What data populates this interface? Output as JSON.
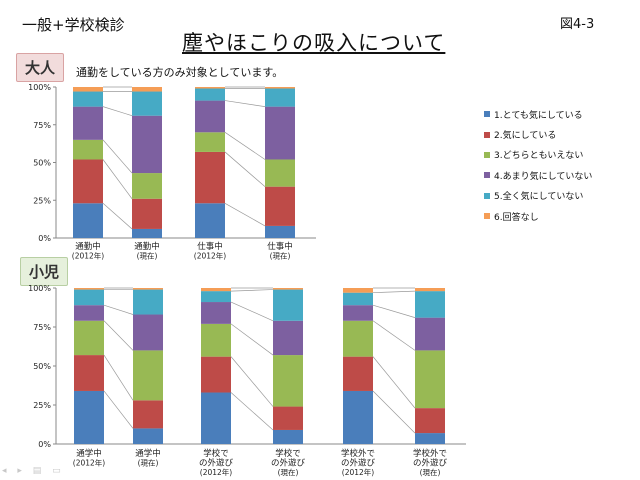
{
  "header": {
    "label": "一般+学校検診",
    "figure_number": "図4-3",
    "title": "塵やほこりの吸入について"
  },
  "sections": {
    "adult_label": "大人",
    "adult_note": "通勤をしている方のみ対象としています。",
    "child_label": "小児"
  },
  "legend": {
    "placement": "right",
    "items": [
      {
        "label": "1.とても気にしている",
        "color": "#4a7ebb"
      },
      {
        "label": "2.気にしている",
        "color": "#be4b48"
      },
      {
        "label": "3.どちらともいえない",
        "color": "#98b954"
      },
      {
        "label": "4.あまり気にしていない",
        "color": "#7d60a0"
      },
      {
        "label": "5.全く気にしていない",
        "color": "#46aac5"
      },
      {
        "label": "6.回答なし",
        "color": "#f59d56"
      }
    ]
  },
  "chart_data": [
    {
      "type": "bar",
      "stacked": true,
      "percent": true,
      "title": "大人",
      "ylim": [
        0,
        100
      ],
      "yticks": [
        "0%",
        "25%",
        "50%",
        "75%",
        "100%"
      ],
      "categories": [
        [
          "通勤中",
          "(2012年)"
        ],
        [
          "通勤中",
          "(現在)"
        ],
        [
          "仕事中",
          "(2012年)"
        ],
        [
          "仕事中",
          "(現在)"
        ]
      ],
      "series": [
        {
          "name": "1.とても気にしている",
          "values": [
            23,
            6,
            23,
            8
          ]
        },
        {
          "name": "2.気にしている",
          "values": [
            29,
            20,
            34,
            26
          ]
        },
        {
          "name": "3.どちらともいえない",
          "values": [
            13,
            17,
            13,
            18
          ]
        },
        {
          "name": "4.あまり気にしていない",
          "values": [
            22,
            38,
            21,
            35
          ]
        },
        {
          "name": "5.全く気にしていない",
          "values": [
            10,
            16,
            8,
            12
          ]
        },
        {
          "name": "6.回答なし",
          "values": [
            3,
            3,
            1,
            1
          ]
        }
      ]
    },
    {
      "type": "bar",
      "stacked": true,
      "percent": true,
      "title": "小児",
      "ylim": [
        0,
        100
      ],
      "yticks": [
        "0%",
        "25%",
        "50%",
        "75%",
        "100%"
      ],
      "categories": [
        [
          "通学中",
          "(2012年)"
        ],
        [
          "通学中",
          "(現在)"
        ],
        [
          "学校で",
          "の外遊び",
          "(2012年)"
        ],
        [
          "学校で",
          "の外遊び",
          "(現在)"
        ],
        [
          "学校外で",
          "の外遊び",
          "(2012年)"
        ],
        [
          "学校外で",
          "の外遊び",
          "(現在)"
        ]
      ],
      "series": [
        {
          "name": "1.とても気にしている",
          "values": [
            34,
            10,
            33,
            9,
            34,
            7
          ]
        },
        {
          "name": "2.気にしている",
          "values": [
            23,
            18,
            23,
            15,
            22,
            16
          ]
        },
        {
          "name": "3.どちらともいえない",
          "values": [
            22,
            32,
            21,
            33,
            23,
            37
          ]
        },
        {
          "name": "4.あまり気にしていない",
          "values": [
            10,
            23,
            14,
            22,
            10,
            21
          ]
        },
        {
          "name": "5.全く気にしていない",
          "values": [
            10,
            16,
            7,
            20,
            8,
            17
          ]
        },
        {
          "name": "6.回答なし",
          "values": [
            1,
            1,
            2,
            1,
            3,
            2
          ]
        }
      ]
    }
  ]
}
